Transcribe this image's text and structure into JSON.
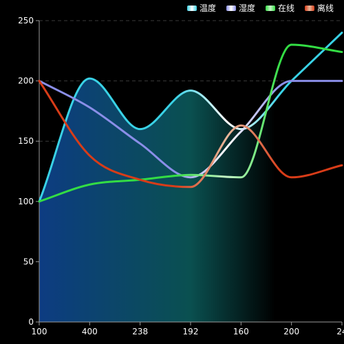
{
  "chart_data": {
    "type": "line",
    "categories": [
      "100",
      "400",
      "238",
      "192",
      "160",
      "200",
      "24"
    ],
    "ylim": [
      0,
      250
    ],
    "yticks": [
      0,
      50,
      100,
      150,
      200,
      250
    ],
    "grid": true,
    "legend_position": "top-right",
    "series": [
      {
        "name": "温度",
        "color": "#39d2e6",
        "color2": "#ffffff",
        "values": [
          100,
          202,
          160,
          192,
          160,
          200,
          240
        ]
      },
      {
        "name": "湿度",
        "color": "#8a8ee8",
        "color2": "#ffffff",
        "values": [
          200,
          178,
          148,
          120,
          158,
          200,
          200
        ]
      },
      {
        "name": "在线",
        "color": "#33dd44",
        "color2": "#c8f5c8",
        "values": [
          100,
          114,
          118,
          122,
          120,
          230,
          224
        ]
      },
      {
        "name": "离线",
        "color": "#d83c18",
        "color2": "#e8b89c",
        "values": [
          200,
          138,
          118,
          112,
          163,
          120,
          130
        ]
      }
    ],
    "area_gradient": [
      "#0d3c82",
      "#0a5050",
      "#000000"
    ]
  }
}
